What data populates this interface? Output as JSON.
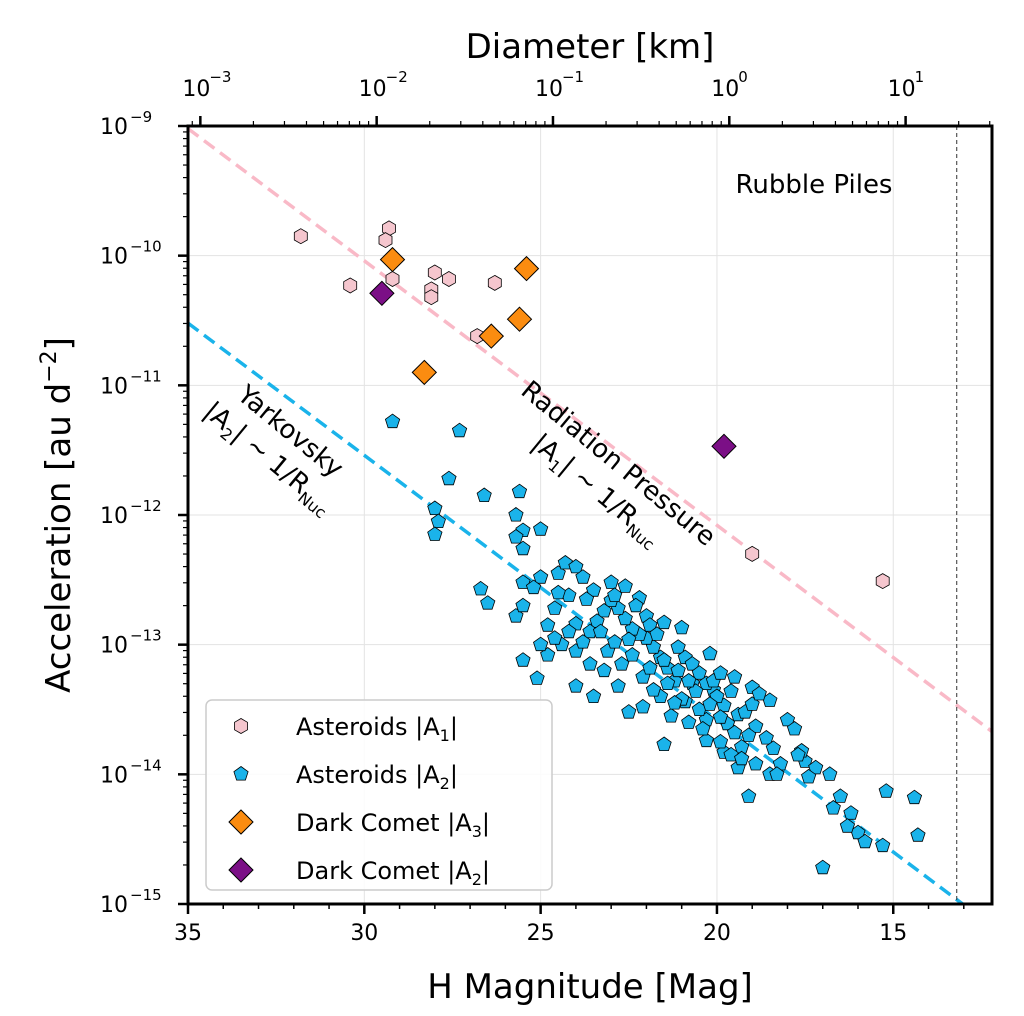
{
  "chart_data": {
    "type": "scatter",
    "xlabel": "H Magnitude [Mag]",
    "ylabel": "Acceleration [au d",
    "ylabel_sup": "−2",
    "ylabel_end": "]",
    "top_xlabel": "Diameter [km]",
    "xlim": [
      35,
      12.2
    ],
    "ylim_log10": [
      -15,
      -9
    ],
    "y_scale": "log",
    "grid": true,
    "x_ticks": [
      35,
      30,
      25,
      20,
      15
    ],
    "x_tick_labels": [
      "35",
      "30",
      "25",
      "20",
      "15"
    ],
    "y_ticks_exp": [
      -9,
      -10,
      -11,
      -12,
      -13,
      -14,
      -15
    ],
    "y_tick_base": "10",
    "y_tick_exps": [
      "−9",
      "−10",
      "−11",
      "−12",
      "−13",
      "−14",
      "−15"
    ],
    "top_ticks_km": [
      0.001,
      0.01,
      0.1,
      1,
      10
    ],
    "top_tick_exps": [
      "−3",
      "−2",
      "−1",
      "0",
      "1"
    ],
    "vline_h": 13.2,
    "annotations": {
      "rubble": "Rubble Piles",
      "rad_line1": "Radiation Pressure",
      "rad_line2_a": "|A",
      "rad_line2_sub": "1",
      "rad_line2_b": "| ~ 1/R",
      "rad_line2_sub2": "Nuc",
      "yark_line1": "Yarkovsky",
      "yark_line2_a": "|A",
      "yark_line2_sub": "2",
      "yark_line2_b": "| ~ 1/R",
      "yark_line2_sub2": "Nuc"
    },
    "legend_position": "lower-left",
    "colors": {
      "asteroids_a1": "#f5c6ce",
      "asteroids_a2": "#1ab3ea",
      "dark_comet_a3": "#fb8c10",
      "dark_comet_a2": "#7b0f86",
      "radiation_line": "#f9b9c7",
      "yarkovsky_line": "#1ab3ea"
    },
    "fit_lines": [
      {
        "key": "radiation",
        "x": [
          35,
          12.2
        ],
        "y_log10": [
          -9.02,
          -13.67
        ]
      },
      {
        "key": "yarkovsky",
        "x": [
          35,
          12.2
        ],
        "y_log10": [
          -10.52,
          -15.17
        ]
      }
    ],
    "series": [
      {
        "key": "asteroids_a1",
        "name": "Asteroids |A",
        "name_sub": "1",
        "name_end": "|",
        "marker": "hexagon",
        "points": [
          [
            31.8,
            -9.85
          ],
          [
            30.4,
            -10.23
          ],
          [
            29.3,
            -9.79
          ],
          [
            29.4,
            -9.88
          ],
          [
            29.2,
            -10.18
          ],
          [
            28.0,
            -10.13
          ],
          [
            28.1,
            -10.26
          ],
          [
            28.1,
            -10.32
          ],
          [
            27.6,
            -10.18
          ],
          [
            26.3,
            -10.21
          ],
          [
            26.8,
            -10.62
          ],
          [
            19.0,
            -12.3
          ],
          [
            15.3,
            -12.51
          ]
        ]
      },
      {
        "key": "asteroids_a2",
        "name": "Asteroids |A",
        "name_sub": "2",
        "name_end": "|",
        "marker": "pentagon",
        "points": [
          [
            29.2,
            -11.28
          ],
          [
            27.3,
            -11.35
          ],
          [
            27.6,
            -11.72
          ],
          [
            26.6,
            -11.85
          ],
          [
            25.6,
            -11.82
          ],
          [
            28.0,
            -11.95
          ],
          [
            27.9,
            -12.05
          ],
          [
            28.0,
            -12.15
          ],
          [
            25.7,
            -12.0
          ],
          [
            25.5,
            -12.12
          ],
          [
            25.0,
            -12.11
          ],
          [
            25.5,
            -12.26
          ],
          [
            25.7,
            -12.17
          ],
          [
            24.5,
            -12.45
          ],
          [
            24.3,
            -12.37
          ],
          [
            24.0,
            -12.4
          ],
          [
            25.0,
            -12.48
          ],
          [
            25.5,
            -12.52
          ],
          [
            26.7,
            -12.57
          ],
          [
            26.5,
            -12.68
          ],
          [
            25.2,
            -12.56
          ],
          [
            25.7,
            -12.78
          ],
          [
            25.5,
            -12.7
          ],
          [
            24.2,
            -12.62
          ],
          [
            24.6,
            -12.72
          ],
          [
            23.8,
            -12.48
          ],
          [
            23.5,
            -12.58
          ],
          [
            23.0,
            -12.52
          ],
          [
            22.6,
            -12.55
          ],
          [
            22.2,
            -12.64
          ],
          [
            22.0,
            -12.78
          ],
          [
            21.5,
            -12.83
          ],
          [
            21.0,
            -12.87
          ],
          [
            20.2,
            -13.07
          ],
          [
            19.5,
            -13.25
          ],
          [
            19.0,
            -13.33
          ],
          [
            18.5,
            -13.43
          ],
          [
            18.0,
            -13.58
          ],
          [
            17.8,
            -13.65
          ],
          [
            17.5,
            -13.9
          ],
          [
            17.2,
            -13.95
          ],
          [
            16.8,
            -14.0
          ],
          [
            16.5,
            -14.17
          ],
          [
            16.2,
            -14.3
          ],
          [
            16.0,
            -14.45
          ],
          [
            15.8,
            -14.52
          ],
          [
            15.3,
            -14.55
          ],
          [
            15.2,
            -14.13
          ],
          [
            14.4,
            -14.18
          ],
          [
            14.3,
            -14.47
          ],
          [
            16.3,
            -14.4
          ],
          [
            16.7,
            -14.26
          ],
          [
            17.0,
            -14.72
          ],
          [
            17.4,
            -14.02
          ],
          [
            17.6,
            -13.82
          ],
          [
            18.2,
            -13.92
          ],
          [
            18.5,
            -14.0
          ],
          [
            19.1,
            -14.17
          ],
          [
            19.4,
            -13.95
          ],
          [
            19.8,
            -13.83
          ],
          [
            20.3,
            -13.74
          ],
          [
            21.5,
            -13.77
          ],
          [
            22.5,
            -13.52
          ],
          [
            23.5,
            -13.4
          ],
          [
            24.0,
            -13.32
          ],
          [
            25.5,
            -13.12
          ],
          [
            25.1,
            -13.26
          ],
          [
            24.0,
            -13.05
          ],
          [
            23.2,
            -13.2
          ],
          [
            22.8,
            -13.32
          ],
          [
            22.1,
            -13.48
          ],
          [
            21.3,
            -13.55
          ],
          [
            20.9,
            -13.44
          ],
          [
            20.7,
            -13.3
          ],
          [
            20.3,
            -13.58
          ],
          [
            20.1,
            -13.35
          ],
          [
            19.8,
            -13.47
          ],
          [
            19.7,
            -13.61
          ],
          [
            19.4,
            -13.54
          ],
          [
            19.2,
            -13.52
          ],
          [
            19.0,
            -13.46
          ],
          [
            18.8,
            -13.38
          ],
          [
            18.6,
            -13.72
          ],
          [
            18.4,
            -13.8
          ],
          [
            17.7,
            -13.85
          ],
          [
            18.9,
            -13.63
          ],
          [
            19.1,
            -13.7
          ],
          [
            19.3,
            -13.79
          ],
          [
            19.5,
            -13.68
          ],
          [
            19.9,
            -13.56
          ],
          [
            20.0,
            -13.4
          ],
          [
            20.5,
            -13.5
          ],
          [
            20.8,
            -13.6
          ],
          [
            21.0,
            -13.42
          ],
          [
            21.2,
            -13.28
          ],
          [
            21.4,
            -13.18
          ],
          [
            21.6,
            -13.1
          ],
          [
            21.8,
            -13.02
          ],
          [
            22.0,
            -12.95
          ],
          [
            22.2,
            -12.92
          ],
          [
            22.4,
            -12.88
          ],
          [
            22.6,
            -12.8
          ],
          [
            22.8,
            -12.72
          ],
          [
            23.0,
            -12.66
          ],
          [
            23.2,
            -12.74
          ],
          [
            23.4,
            -12.82
          ],
          [
            23.6,
            -12.9
          ],
          [
            23.8,
            -12.98
          ],
          [
            24.0,
            -12.84
          ],
          [
            24.2,
            -12.9
          ],
          [
            24.4,
            -13.0
          ],
          [
            24.6,
            -12.95
          ],
          [
            24.8,
            -13.08
          ],
          [
            25.0,
            -13.0
          ],
          [
            24.8,
            -12.85
          ],
          [
            24.5,
            -12.6
          ],
          [
            23.7,
            -12.65
          ],
          [
            22.9,
            -12.62
          ],
          [
            22.3,
            -12.7
          ],
          [
            21.9,
            -12.85
          ],
          [
            21.7,
            -12.92
          ],
          [
            21.1,
            -13.02
          ],
          [
            20.9,
            -13.1
          ],
          [
            20.7,
            -13.15
          ],
          [
            20.5,
            -13.22
          ],
          [
            20.3,
            -13.3
          ],
          [
            20.1,
            -13.28
          ],
          [
            19.9,
            -13.22
          ],
          [
            19.6,
            -13.36
          ],
          [
            20.6,
            -13.36
          ],
          [
            21.2,
            -13.45
          ],
          [
            21.6,
            -13.4
          ],
          [
            22.1,
            -13.25
          ],
          [
            22.7,
            -13.15
          ],
          [
            23.1,
            -13.05
          ],
          [
            23.6,
            -13.15
          ],
          [
            22.4,
            -13.08
          ],
          [
            21.9,
            -13.18
          ],
          [
            21.4,
            -13.3
          ],
          [
            20.4,
            -13.65
          ],
          [
            19.9,
            -13.75
          ],
          [
            19.6,
            -13.85
          ],
          [
            19.3,
            -13.88
          ],
          [
            18.9,
            -13.92
          ],
          [
            18.3,
            -14.0
          ],
          [
            20.2,
            -13.46
          ],
          [
            21.8,
            -13.35
          ],
          [
            22.9,
            -12.98
          ],
          [
            23.3,
            -12.9
          ],
          [
            22.5,
            -12.96
          ],
          [
            21.5,
            -13.12
          ],
          [
            21.1,
            -13.2
          ],
          [
            20.8,
            -13.28
          ]
        ]
      },
      {
        "key": "dark_comet_a3",
        "name": "Dark Comet |A",
        "name_sub": "3",
        "name_end": "|",
        "marker": "diamond",
        "points": [
          [
            29.2,
            -10.03
          ],
          [
            25.4,
            -10.1
          ],
          [
            25.6,
            -10.49
          ],
          [
            26.4,
            -10.62
          ],
          [
            28.3,
            -10.9
          ]
        ]
      },
      {
        "key": "dark_comet_a2",
        "name": "Dark Comet |A",
        "name_sub": "2",
        "name_end": "|",
        "marker": "diamond",
        "points": [
          [
            29.5,
            -10.29
          ],
          [
            19.8,
            -11.47
          ]
        ]
      }
    ]
  }
}
